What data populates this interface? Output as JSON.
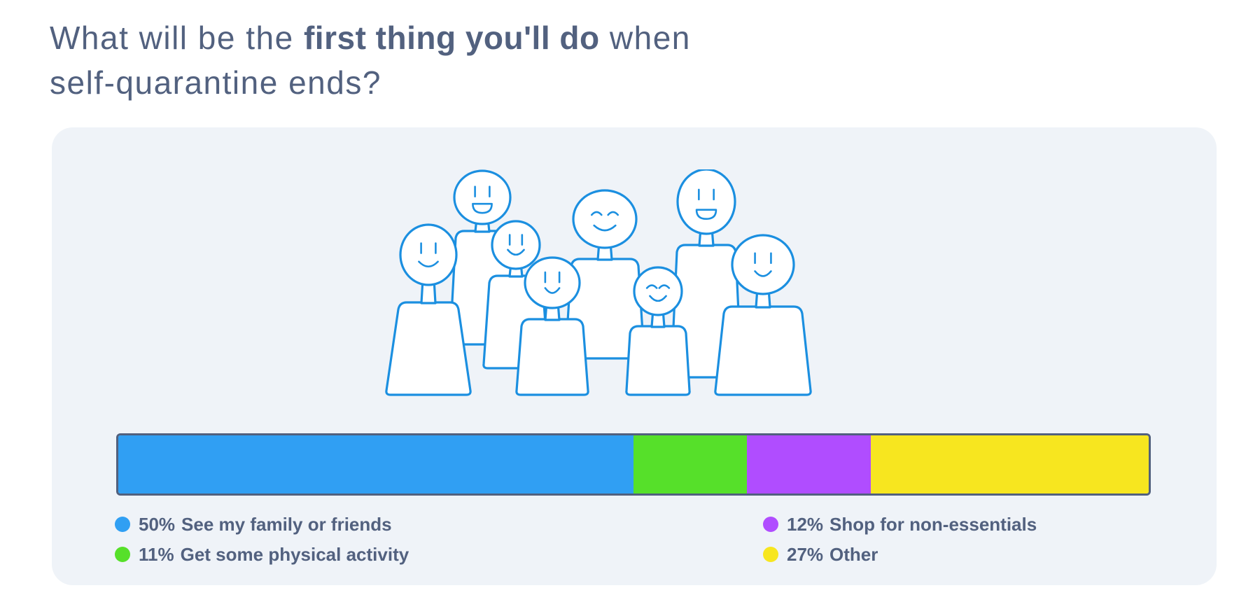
{
  "title": {
    "prefix": "What will be the ",
    "bold": "first thing you'll do",
    "suffix": " when",
    "line2": "self-quarantine ends?"
  },
  "chart_data": {
    "type": "bar",
    "orientation": "horizontal-stacked",
    "total": 100,
    "series": [
      {
        "name": "See my family or friends",
        "value": 50,
        "label": "50%",
        "color": "#309ff3"
      },
      {
        "name": "Get some physical activity",
        "value": 11,
        "label": "11%",
        "color": "#56e02a"
      },
      {
        "name": "Shop for non-essentials",
        "value": 12,
        "label": "12%",
        "color": "#b04dff"
      },
      {
        "name": "Other",
        "value": 27,
        "label": "27%",
        "color": "#f7e61f"
      }
    ],
    "legend_placement": "bottom",
    "grid": false
  },
  "illustration": {
    "icon": "group-of-smiling-people-icon",
    "stroke_color": "#1b8fe0",
    "fill_color": "#ffffff"
  }
}
